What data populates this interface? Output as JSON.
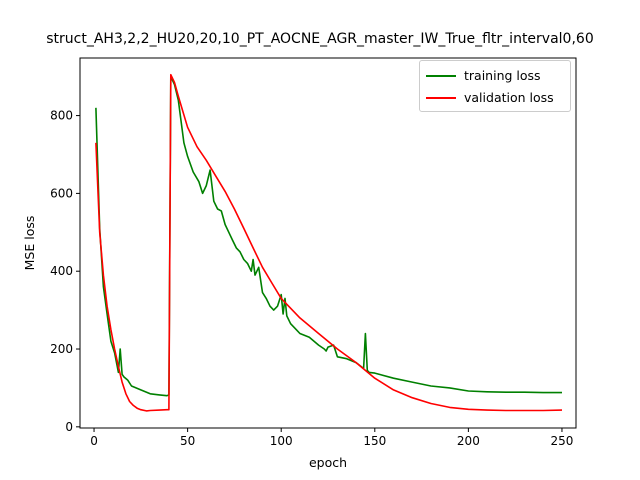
{
  "chart_data": {
    "type": "line",
    "title": "struct_AH3,2,2_HU20,20,10_PT_AOCNE_AGR_master_IW_True_fltr_interval0,60",
    "xlabel": "epoch",
    "ylabel": "MSE loss",
    "xlim": [
      -7.5,
      257.5
    ],
    "ylim": [
      -3,
      948
    ],
    "xticks": [
      0,
      50,
      100,
      150,
      200,
      250
    ],
    "yticks": [
      0,
      200,
      400,
      600,
      800
    ],
    "grid": false,
    "legend_position": "top-right",
    "series": [
      {
        "name": "training loss",
        "color": "#008000",
        "x": [
          1,
          3,
          5,
          7,
          9,
          11,
          13,
          14,
          15,
          16,
          18,
          20,
          25,
          30,
          35,
          39,
          40,
          41,
          43,
          45,
          48,
          50,
          53,
          56,
          58,
          60,
          62,
          64,
          65,
          66,
          68,
          70,
          72,
          74,
          76,
          78,
          80,
          82,
          84,
          85,
          86,
          88,
          90,
          92,
          94,
          96,
          98,
          100,
          101,
          102,
          103,
          105,
          108,
          110,
          115,
          120,
          123,
          124,
          125,
          128,
          130,
          135,
          140,
          144,
          145,
          146,
          147,
          150,
          160,
          170,
          180,
          190,
          200,
          210,
          220,
          230,
          240,
          250
        ],
        "y": [
          820,
          510,
          360,
          290,
          220,
          190,
          140,
          200,
          135,
          128,
          120,
          105,
          95,
          85,
          82,
          80,
          82,
          900,
          880,
          840,
          730,
          695,
          655,
          630,
          600,
          620,
          660,
          580,
          570,
          560,
          555,
          520,
          500,
          480,
          460,
          450,
          430,
          420,
          400,
          430,
          390,
          410,
          345,
          330,
          310,
          300,
          310,
          340,
          290,
          330,
          285,
          265,
          250,
          240,
          230,
          210,
          200,
          195,
          205,
          210,
          180,
          175,
          165,
          150,
          240,
          145,
          140,
          138,
          125,
          115,
          105,
          100,
          92,
          90,
          89,
          89,
          88,
          88
        ]
      },
      {
        "name": "validation loss",
        "color": "#ff0000",
        "x": [
          1,
          3,
          5,
          7,
          9,
          11,
          13,
          15,
          17,
          19,
          21,
          23,
          25,
          28,
          30,
          35,
          39,
          40,
          41,
          43,
          45,
          50,
          55,
          60,
          65,
          70,
          75,
          80,
          85,
          90,
          95,
          100,
          110,
          120,
          130,
          140,
          150,
          160,
          170,
          180,
          190,
          200,
          210,
          220,
          230,
          240,
          250
        ],
        "y": [
          730,
          500,
          390,
          310,
          250,
          200,
          155,
          115,
          85,
          65,
          55,
          48,
          44,
          41,
          42,
          43,
          44,
          44,
          905,
          885,
          850,
          770,
          720,
          685,
          645,
          605,
          560,
          510,
          460,
          410,
          370,
          330,
          280,
          240,
          200,
          165,
          125,
          95,
          75,
          60,
          50,
          45,
          43,
          42,
          42,
          42,
          43
        ]
      }
    ]
  }
}
